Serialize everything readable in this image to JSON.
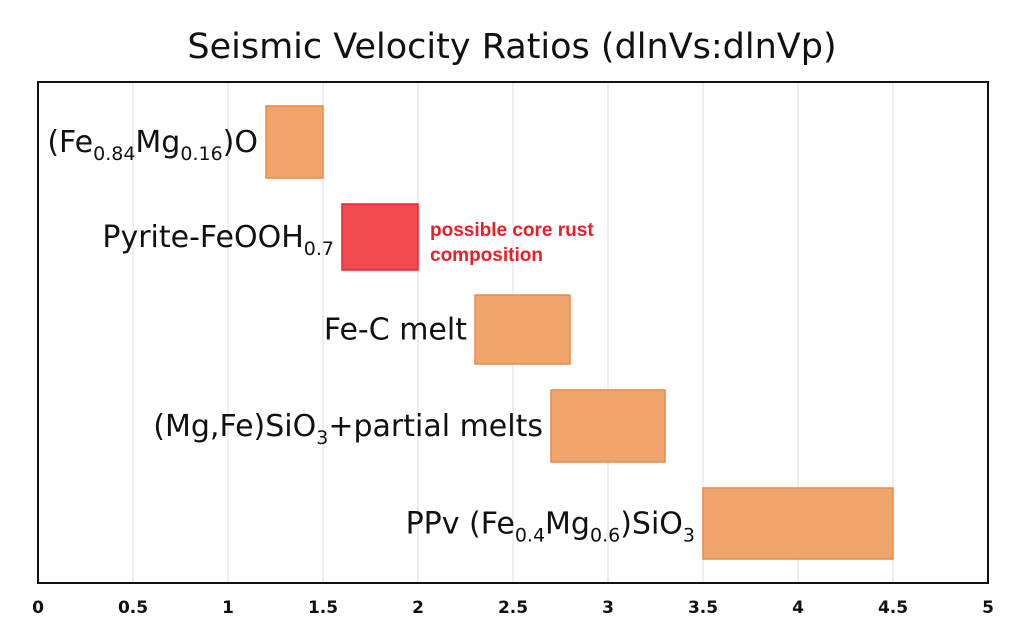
{
  "chart_data": {
    "type": "bar",
    "orientation": "horizontal-range",
    "title": "Seismic Velocity Ratios (dlnVs:dlnVp)",
    "xlabel": "",
    "ylabel": "",
    "xlim": [
      0,
      5
    ],
    "x_ticks": [
      "0",
      "0.5",
      "1",
      "1.5",
      "2",
      "2.5",
      "3",
      "3.5",
      "4",
      "4.5",
      "5"
    ],
    "grid": "vertical",
    "categories": [
      {
        "parts": [
          [
            "Fe",
            ""
          ],
          [
            "0.84",
            "sub"
          ],
          [
            "Mg",
            ""
          ],
          [
            "0.16",
            "sub"
          ],
          [
            ")O",
            ""
          ]
        ],
        "prefix": "(",
        "range": [
          1.2,
          1.5
        ],
        "color": "#f0a56c",
        "stroke": "#e88a47"
      },
      {
        "parts": [
          [
            "Pyrite-FeOOH",
            ""
          ],
          [
            "0.7",
            "sub"
          ]
        ],
        "prefix": "",
        "range": [
          1.6,
          2.0
        ],
        "color": "#f14a50",
        "stroke": "#e3262e"
      },
      {
        "parts": [
          [
            "Fe-C melt",
            ""
          ]
        ],
        "prefix": "",
        "range": [
          2.3,
          2.8
        ],
        "color": "#f0a56c",
        "stroke": "#e88a47"
      },
      {
        "parts": [
          [
            "(Mg,Fe)SiO",
            ""
          ],
          [
            "3",
            "sub"
          ],
          [
            "+partial melts",
            ""
          ]
        ],
        "prefix": "",
        "range": [
          2.7,
          3.3
        ],
        "color": "#f0a56c",
        "stroke": "#e88a47"
      },
      {
        "parts": [
          [
            "PPv (Fe",
            ""
          ],
          [
            "0.4",
            "sub"
          ],
          [
            "Mg",
            ""
          ],
          [
            "0.6",
            "sub"
          ],
          [
            ")SiO",
            ""
          ],
          [
            "3",
            "sub"
          ]
        ],
        "prefix": "",
        "range": [
          3.5,
          4.5
        ],
        "color": "#f0a56c",
        "stroke": "#e88a47"
      }
    ],
    "annotation": {
      "lines": [
        "possible core rust",
        "composition"
      ],
      "color": "#ee1c25"
    }
  }
}
